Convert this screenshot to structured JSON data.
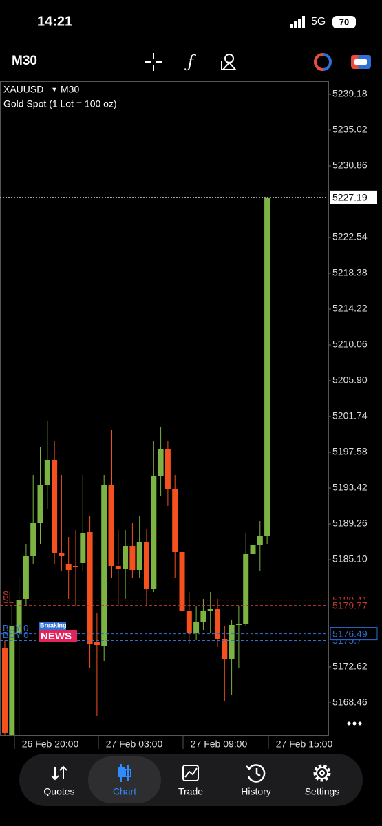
{
  "status_bar": {
    "time": "14:21",
    "network": "5G",
    "battery": "70"
  },
  "toolbar": {
    "timeframe": "M30"
  },
  "chart_data": {
    "type": "candlestick",
    "symbol": "XAUUSD",
    "timeframe": "M30",
    "subtitle": "Gold Spot (1 Lot = 100 oz)",
    "open": [
      5174.78,
      5164.7,
      5176.54,
      5180.54,
      5185.5,
      5189.34,
      5193.74,
      5196.7,
      5185.9,
      5184.54,
      5184.38,
      5184.7,
      5188.3,
      5175.5,
      5175.1,
      5193.74,
      5184.3,
      5184.06,
      5186.7,
      5183.9,
      5187.1,
      5181.74,
      5194.78,
      5197.9,
      5193.34,
      5185.98,
      5179.1,
      5176.54,
      5177.9,
      5179.1,
      5179.34,
      5175.9,
      5173.5,
      5177.5,
      5177.66,
      5185.74,
      5186.78,
      5187.86
    ],
    "high": [
      5175.74,
      5179.74,
      5182.94,
      5186.94,
      5194.94,
      5198.14,
      5201.18,
      5198.94,
      5194.94,
      5187.74,
      5188.54,
      5194.94,
      5190.14,
      5178.94,
      5194.94,
      5200.14,
      5188.54,
      5188.54,
      5189.34,
      5190.14,
      5188.7,
      5198.94,
      5200.54,
      5198.94,
      5194.94,
      5186.94,
      5181.34,
      5179.74,
      5180.54,
      5181.34,
      5180.54,
      5177.34,
      5178.14,
      5179.74,
      5188.14,
      5189.34,
      5189.58,
      5227.19
    ],
    "low": [
      5164.7,
      5164.7,
      5164.7,
      5179.74,
      5184.54,
      5186.94,
      5190.94,
      5184.54,
      5183.74,
      5180.54,
      5179.74,
      5183.74,
      5172.54,
      5166.94,
      5173.34,
      5182.94,
      5179.74,
      5180.54,
      5182.94,
      5182.94,
      5179.74,
      5181.34,
      5192.54,
      5191.34,
      5182.94,
      5177.34,
      5175.34,
      5175.74,
      5176.94,
      5176.54,
      5174.94,
      5168.7,
      5169.34,
      5172.54,
      5177.34,
      5183.34,
      5183.74,
      5186.94
    ],
    "close": [
      5164.94,
      5177.34,
      5180.38,
      5185.5,
      5189.34,
      5193.74,
      5196.7,
      5185.9,
      5185.5,
      5183.9,
      5184.3,
      5188.14,
      5175.34,
      5175.18,
      5193.74,
      5184.38,
      5184.06,
      5186.7,
      5183.9,
      5187.1,
      5181.74,
      5194.78,
      5197.9,
      5193.34,
      5185.98,
      5179.1,
      5176.54,
      5177.9,
      5179.1,
      5179.34,
      5175.9,
      5173.5,
      5177.5,
      5177.66,
      5185.74,
      5186.78,
      5187.86,
      5227.19
    ],
    "up_color": "#7cb342",
    "down_color": "#f4511e",
    "ylim": [
      5164.7,
      5240.7
    ],
    "yticks": [
      5239.18,
      5235.02,
      5230.86,
      5222.54,
      5218.38,
      5214.22,
      5210.06,
      {
        "value": 5205.9,
        "label": "5205.90"
      },
      5201.74,
      5197.58,
      5193.42,
      5189.26,
      {
        "value": 5185.1,
        "label": "5185.10"
      },
      5172.62,
      5168.46
    ],
    "x_labels": [
      "26 Feb 20:00",
      "27 Feb 03:00",
      "27 Feb 09:00",
      "27 Feb 15:00"
    ],
    "current_price": {
      "value": 5227.19,
      "color": "#ffffff"
    },
    "price_lines": [
      {
        "name": "SL",
        "value": 5180.41,
        "color": "#c0392b"
      },
      {
        "name": "SL",
        "value": 5179.77,
        "color": "#c0392b"
      },
      {
        "name": "BUY 0",
        "value": 5175.7,
        "color": "#2f6fd6"
      },
      {
        "name": "BUY 0",
        "value": 5176.49,
        "color": "#2f6fd6"
      }
    ]
  },
  "news": {
    "tag": "Breaking",
    "title": "NEWS"
  },
  "nav": {
    "items": [
      "Quotes",
      "Chart",
      "Trade",
      "History",
      "Settings"
    ],
    "active": 1
  }
}
